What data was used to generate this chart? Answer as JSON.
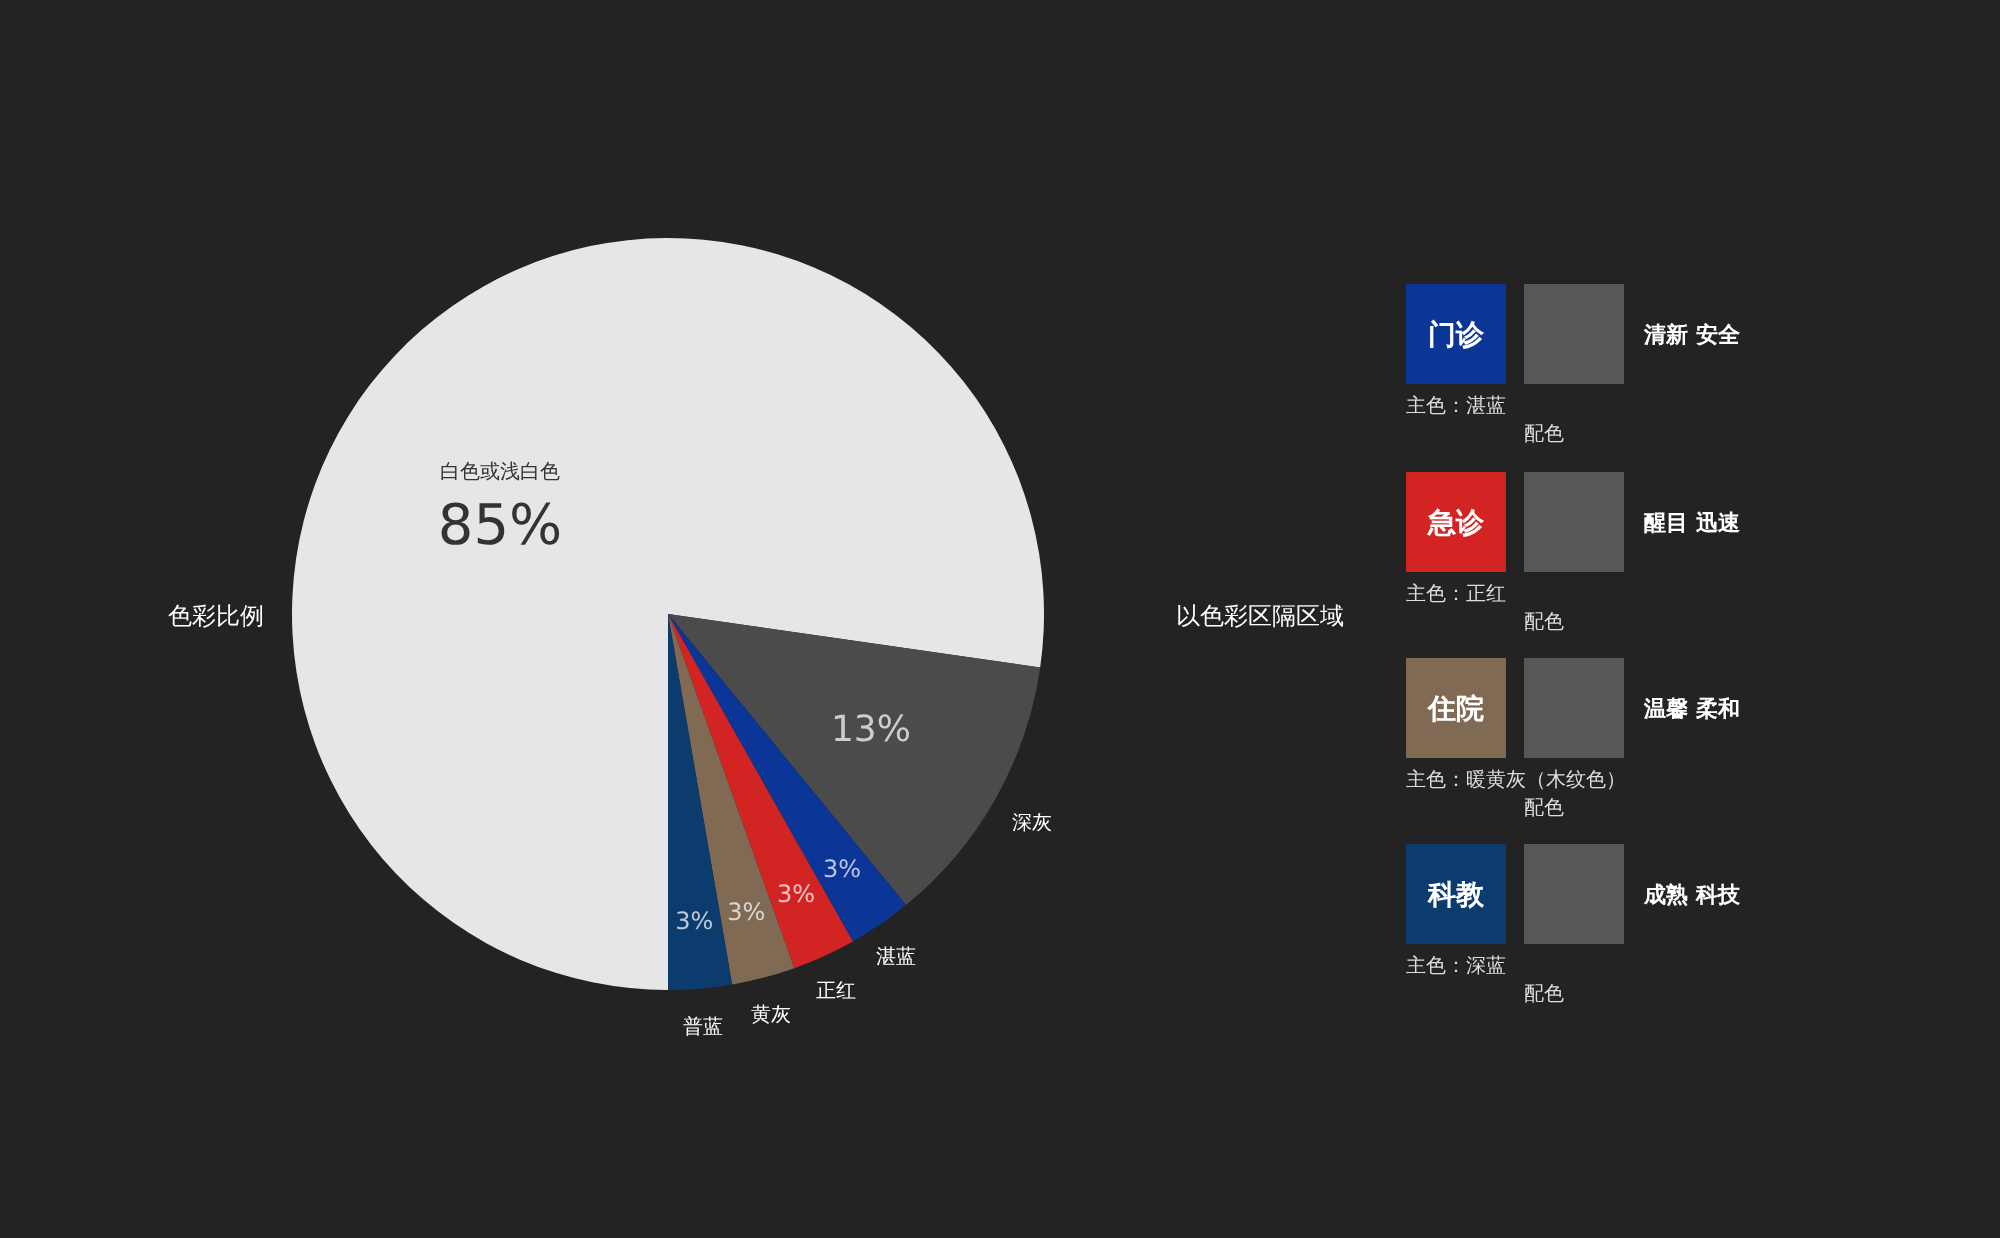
{
  "chart_data": [
    {
      "type": "pie",
      "title": "色彩比例",
      "categories": [
        "白色或浅白色",
        "深灰",
        "湛蓝",
        "正红",
        "黄灰",
        "普蓝"
      ],
      "values": [
        85,
        13,
        3,
        3,
        3,
        3
      ],
      "colors": [
        "#e6e6e6",
        "#4b4b4b",
        "#0b3597",
        "#d32424",
        "#806a53",
        "#0c3b6d"
      ],
      "value_labels": [
        "85%",
        "13%",
        "3%",
        "3%",
        "3%",
        "3%"
      ]
    },
    {
      "type": "other",
      "title": "以色彩区隔区域",
      "categories": [
        "门诊",
        "急诊",
        "住院",
        "科教"
      ],
      "colors": [
        "#0b3597",
        "#d32424",
        "#806a53",
        "#0c3b6d"
      ],
      "annotations": [
        "主色：湛蓝",
        "配色",
        "清新 安全",
        "主色：正红",
        "配色",
        "醒目 迅速",
        "主色：暖黄灰（木纹色）",
        "配色",
        "温馨 柔和",
        "主色：深蓝",
        "配色",
        "成熟 科技"
      ]
    }
  ]
}
